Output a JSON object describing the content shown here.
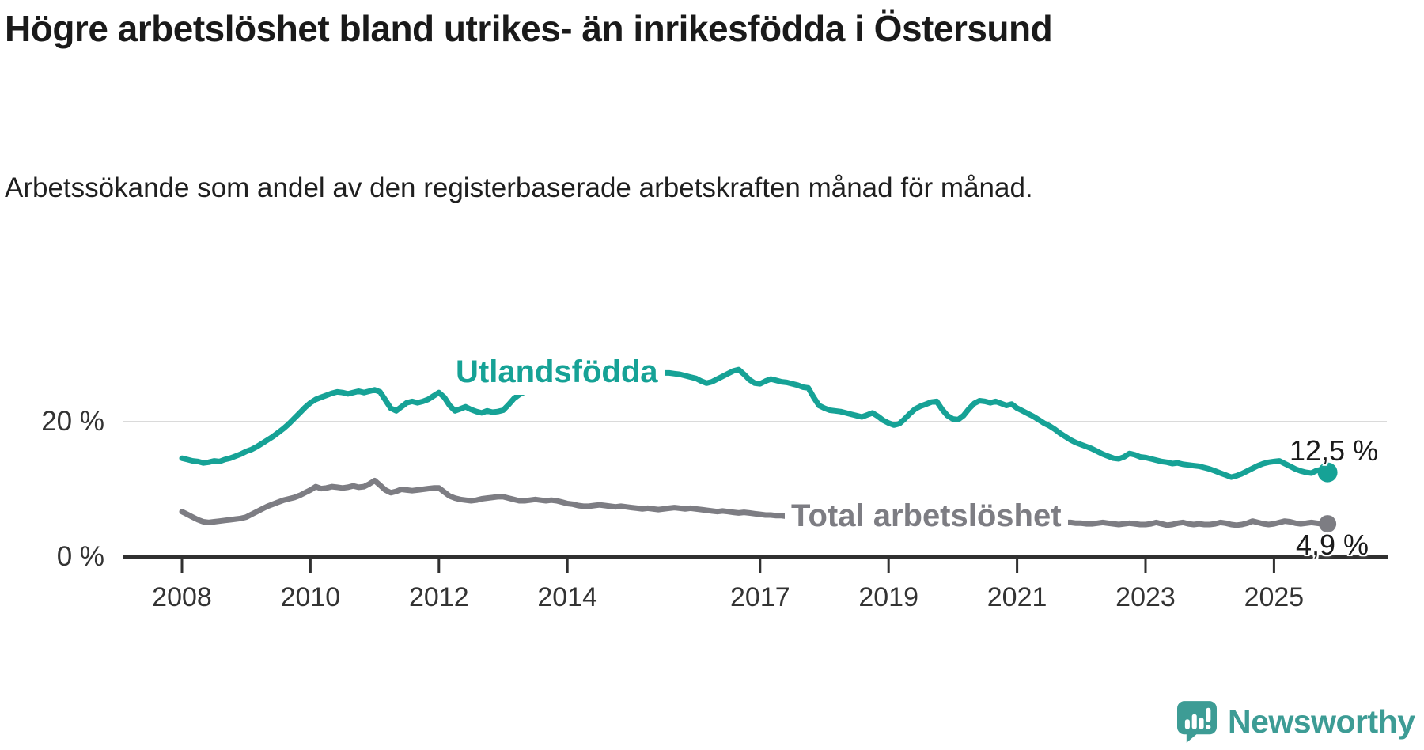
{
  "title": "Högre arbetslöshet bland utrikes- än inrikesfödda i Östersund",
  "subtitle": "Arbetssökande som andel av den registerbaserade arbetskraften månad för månad.",
  "branding": {
    "name": "Newsworthy",
    "color": "#3d9c95",
    "icon": "newsworthy-speech-bubble-chart-icon"
  },
  "chart_data": {
    "type": "line",
    "title": "Högre arbetslöshet bland utrikes- än inrikesfödda i Östersund",
    "unit": "%",
    "x_monthly_from": "2008-01",
    "x_monthly_to": "2025-11",
    "x_tick_years": [
      2008,
      2010,
      2012,
      2014,
      2017,
      2019,
      2021,
      2023,
      2025
    ],
    "y_axis": {
      "min": 0,
      "max": 30,
      "gridline_at": 20,
      "ticks": [
        {
          "value": 0,
          "label": "0 %"
        },
        {
          "value": 20,
          "label": "20 %"
        }
      ]
    },
    "grid": "single horizontal gridline at 20%",
    "legend_position": "inline labels on lines",
    "colors": {
      "utlandsfodda": "#16a296",
      "total": "#7d7d83",
      "gridline": "#dadada",
      "axis": "#303030"
    },
    "series": [
      {
        "name": "Utlandsfödda",
        "color": "#16a296",
        "end_label": "12,5 %",
        "end_value": 12.5,
        "monthly": [
          14.6,
          14.4,
          14.2,
          14.1,
          13.9,
          14.0,
          14.2,
          14.1,
          14.4,
          14.6,
          14.9,
          15.2,
          15.6,
          15.9,
          16.3,
          16.8,
          17.3,
          17.8,
          18.4,
          19.0,
          19.7,
          20.5,
          21.3,
          22.1,
          22.8,
          23.3,
          23.6,
          23.9,
          24.2,
          24.4,
          24.3,
          24.1,
          24.3,
          24.5,
          24.3,
          24.5,
          24.7,
          24.4,
          23.2,
          22.0,
          21.6,
          22.2,
          22.8,
          23.0,
          22.8,
          23.0,
          23.3,
          23.8,
          24.3,
          23.6,
          22.4,
          21.6,
          21.9,
          22.2,
          21.8,
          21.5,
          21.3,
          21.6,
          21.4,
          21.5,
          21.7,
          22.5,
          23.4,
          24.0,
          24.4,
          24.6,
          24.5,
          24.7,
          24.9,
          25.0,
          25.1,
          25.3,
          25.4,
          25.5,
          25.6,
          25.8,
          25.9,
          26.1,
          26.2,
          26.2,
          26.3,
          26.4,
          26.4,
          26.5,
          26.6,
          26.7,
          26.8,
          26.9,
          27.0,
          27.1,
          27.2,
          27.2,
          27.1,
          27.0,
          26.8,
          26.6,
          26.4,
          26.0,
          25.7,
          25.9,
          26.3,
          26.7,
          27.1,
          27.5,
          27.7,
          27.0,
          26.2,
          25.7,
          25.6,
          26.0,
          26.3,
          26.1,
          25.9,
          25.8,
          25.6,
          25.4,
          25.1,
          25.0,
          23.6,
          22.4,
          22.0,
          21.7,
          21.6,
          21.5,
          21.3,
          21.1,
          20.9,
          20.7,
          21.0,
          21.3,
          20.8,
          20.2,
          19.8,
          19.5,
          19.7,
          20.4,
          21.2,
          21.9,
          22.3,
          22.6,
          22.9,
          23.0,
          21.8,
          20.9,
          20.4,
          20.3,
          20.9,
          21.9,
          22.7,
          23.1,
          23.0,
          22.8,
          23.0,
          22.7,
          22.4,
          22.6,
          22.0,
          21.6,
          21.2,
          20.8,
          20.3,
          19.8,
          19.4,
          18.9,
          18.3,
          17.8,
          17.3,
          16.9,
          16.6,
          16.3,
          16.0,
          15.6,
          15.2,
          14.9,
          14.6,
          14.5,
          14.8,
          15.3,
          15.1,
          14.8,
          14.7,
          14.5,
          14.3,
          14.1,
          14.0,
          13.8,
          13.9,
          13.7,
          13.6,
          13.5,
          13.4,
          13.2,
          13.0,
          12.7,
          12.4,
          12.1,
          11.8,
          12.0,
          12.3,
          12.7,
          13.1,
          13.5,
          13.8,
          14.0,
          14.1,
          14.2,
          13.8,
          13.4,
          13.0,
          12.7,
          12.5,
          12.4,
          12.8,
          12.9,
          12.5
        ]
      },
      {
        "name": "Total arbetslöshet",
        "color": "#7d7d83",
        "end_label": "4,9 %",
        "end_value": 4.9,
        "monthly": [
          6.7,
          6.3,
          5.9,
          5.5,
          5.2,
          5.1,
          5.2,
          5.3,
          5.4,
          5.5,
          5.6,
          5.7,
          5.9,
          6.3,
          6.7,
          7.1,
          7.5,
          7.8,
          8.1,
          8.4,
          8.6,
          8.8,
          9.1,
          9.5,
          9.9,
          10.4,
          10.1,
          10.2,
          10.4,
          10.3,
          10.2,
          10.3,
          10.5,
          10.3,
          10.4,
          10.8,
          11.3,
          10.6,
          9.9,
          9.5,
          9.7,
          10.0,
          9.9,
          9.8,
          9.9,
          10.0,
          10.1,
          10.2,
          10.2,
          9.6,
          9.0,
          8.7,
          8.5,
          8.4,
          8.3,
          8.4,
          8.6,
          8.7,
          8.8,
          8.9,
          8.9,
          8.7,
          8.5,
          8.3,
          8.3,
          8.4,
          8.5,
          8.4,
          8.3,
          8.4,
          8.3,
          8.1,
          7.9,
          7.8,
          7.6,
          7.5,
          7.5,
          7.6,
          7.7,
          7.6,
          7.5,
          7.4,
          7.5,
          7.4,
          7.3,
          7.2,
          7.1,
          7.2,
          7.1,
          7.0,
          7.1,
          7.2,
          7.3,
          7.2,
          7.1,
          7.2,
          7.1,
          7.0,
          6.9,
          6.8,
          6.7,
          6.8,
          6.7,
          6.6,
          6.5,
          6.6,
          6.5,
          6.4,
          6.3,
          6.2,
          6.2,
          6.1,
          6.1,
          6.0,
          6.0,
          5.9,
          5.9,
          5.8,
          5.8,
          5.7,
          5.6,
          5.5,
          5.5,
          5.4,
          5.4,
          5.3,
          5.3,
          5.2,
          5.2,
          5.3,
          5.2,
          5.1,
          5.1,
          5.0,
          5.0,
          5.1,
          5.2,
          5.3,
          5.4,
          5.5,
          5.5,
          5.6,
          5.5,
          5.6,
          5.7,
          5.8,
          6.0,
          6.3,
          6.5,
          6.6,
          6.6,
          6.5,
          6.4,
          6.3,
          6.2,
          6.1,
          6.0,
          5.9,
          5.8,
          5.7,
          5.6,
          5.5,
          5.4,
          5.3,
          5.2,
          5.1,
          5.1,
          5.0,
          5.0,
          4.9,
          4.9,
          5.0,
          5.1,
          5.0,
          4.9,
          4.8,
          4.9,
          5.0,
          4.9,
          4.8,
          4.8,
          4.9,
          5.1,
          4.9,
          4.7,
          4.8,
          5.0,
          5.1,
          4.9,
          4.8,
          4.9,
          4.8,
          4.8,
          4.9,
          5.1,
          5.0,
          4.8,
          4.7,
          4.8,
          5.0,
          5.3,
          5.1,
          4.9,
          4.8,
          4.9,
          5.1,
          5.3,
          5.2,
          5.0,
          4.9,
          5.0,
          5.1,
          5.0,
          4.9,
          4.9
        ]
      }
    ]
  }
}
